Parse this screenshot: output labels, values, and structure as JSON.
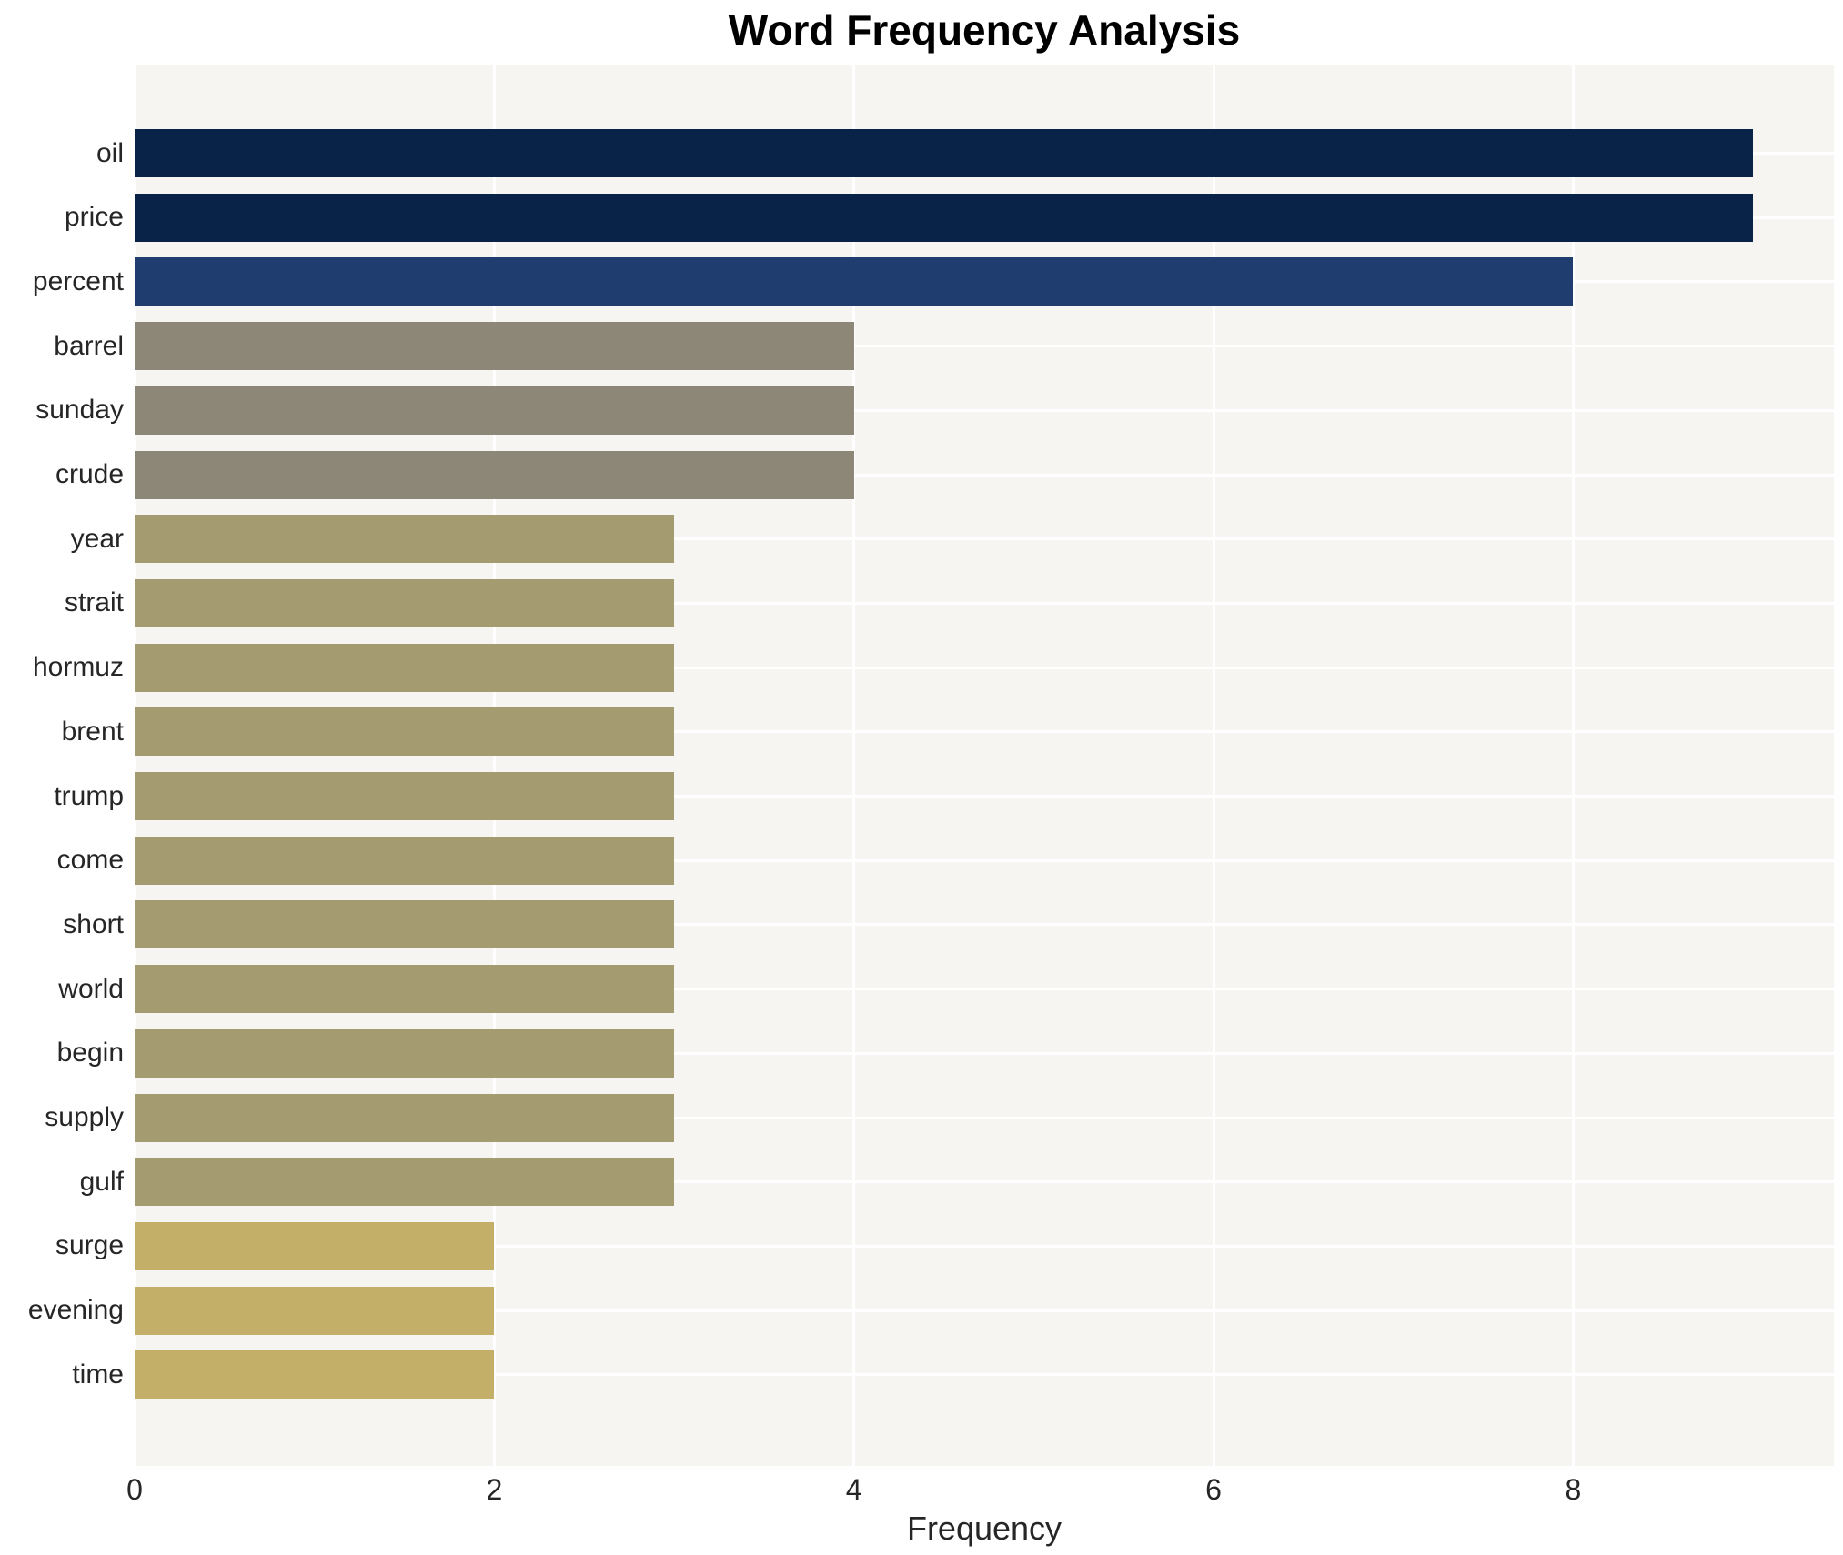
{
  "chart_data": {
    "type": "bar",
    "orientation": "horizontal",
    "title": "Word Frequency Analysis",
    "xlabel": "Frequency",
    "ylabel": "",
    "categories": [
      "oil",
      "price",
      "percent",
      "barrel",
      "sunday",
      "crude",
      "year",
      "strait",
      "hormuz",
      "brent",
      "trump",
      "come",
      "short",
      "world",
      "begin",
      "supply",
      "gulf",
      "surge",
      "evening",
      "time"
    ],
    "values": [
      9,
      9,
      8,
      4,
      4,
      4,
      3,
      3,
      3,
      3,
      3,
      3,
      3,
      3,
      3,
      3,
      3,
      2,
      2,
      2
    ],
    "bar_colors": [
      "#082347",
      "#082347",
      "#1f3d6e",
      "#8c8776",
      "#8c8776",
      "#8c8776",
      "#a49b71",
      "#a49b71",
      "#a49b71",
      "#a49b71",
      "#a49b71",
      "#a49b71",
      "#a49b71",
      "#a49b71",
      "#a49b71",
      "#a49b71",
      "#a49b71",
      "#c3af68",
      "#c3af68",
      "#c3af68"
    ],
    "xticks": [
      0,
      2,
      4,
      6,
      8
    ],
    "xlim": [
      0,
      9.45
    ],
    "grid": true,
    "legend": false,
    "plot_background": "#f6f5f2",
    "gridline_color": "#ffffff",
    "text_color": "#262626",
    "title_color": "#000000"
  }
}
